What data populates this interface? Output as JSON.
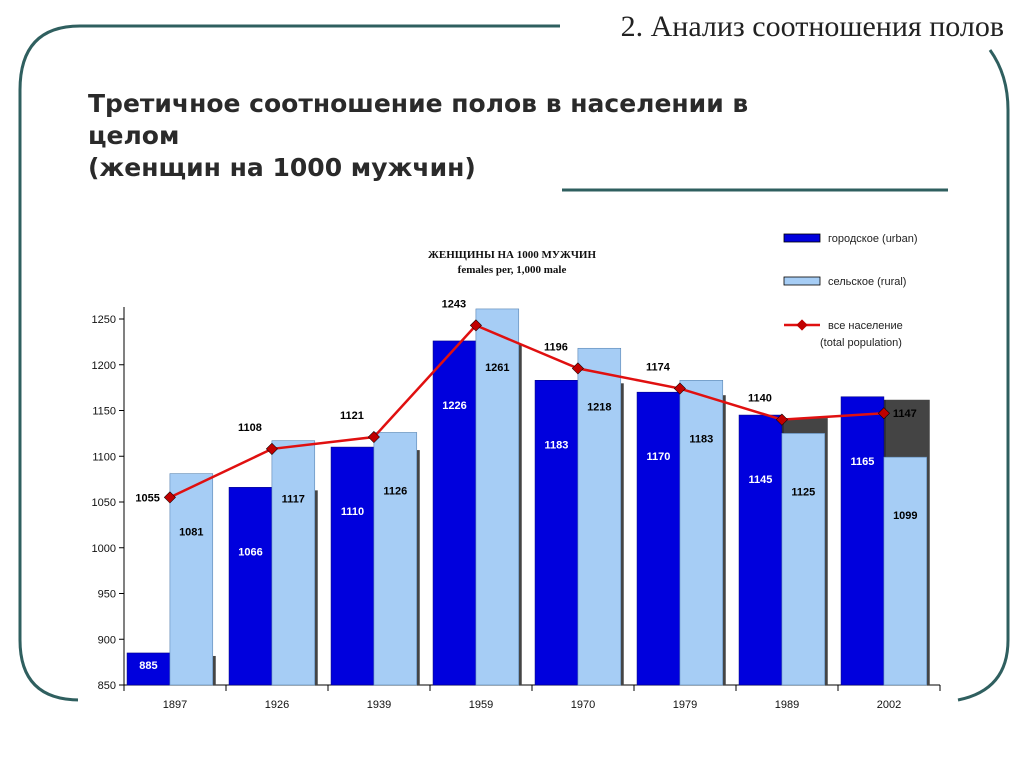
{
  "header": {
    "section_title": "2. Анализ соотношения полов"
  },
  "slide": {
    "title_line1": "Третичное соотношение полов в населении в",
    "title_line2": "целом",
    "title_line3": "(женщин на 1000 мужчин)"
  },
  "colors": {
    "frame": "#2f5f5f",
    "urban": "#0000dd",
    "rural": "#a6cdf5",
    "total": "#e01010",
    "marker": "#c00000"
  },
  "chart_data": {
    "type": "bar",
    "title": "ЖЕНЩИНЫ НА 1000 МУЖЧИН",
    "subtitle": "females per, 1,000 male",
    "categories": [
      "1897",
      "1926",
      "1939",
      "1959",
      "1970",
      "1979",
      "1989",
      "2002"
    ],
    "ylim": [
      850,
      1250
    ],
    "yticks": [
      850,
      900,
      950,
      1000,
      1050,
      1100,
      1150,
      1200,
      1250
    ],
    "grid": false,
    "legend_position": "top-right",
    "series": [
      {
        "name": "городское (urban)",
        "kind": "bar",
        "values": [
          885,
          1066,
          1110,
          1226,
          1183,
          1170,
          1145,
          1165
        ]
      },
      {
        "name": "сельское (rural)",
        "kind": "bar",
        "values": [
          1081,
          1117,
          1126,
          1261,
          1218,
          1183,
          1125,
          1099
        ]
      },
      {
        "name": "все население",
        "name_line2": "(total population)",
        "kind": "line",
        "values": [
          1055,
          1108,
          1121,
          1243,
          1196,
          1174,
          1140,
          1147
        ]
      }
    ]
  }
}
